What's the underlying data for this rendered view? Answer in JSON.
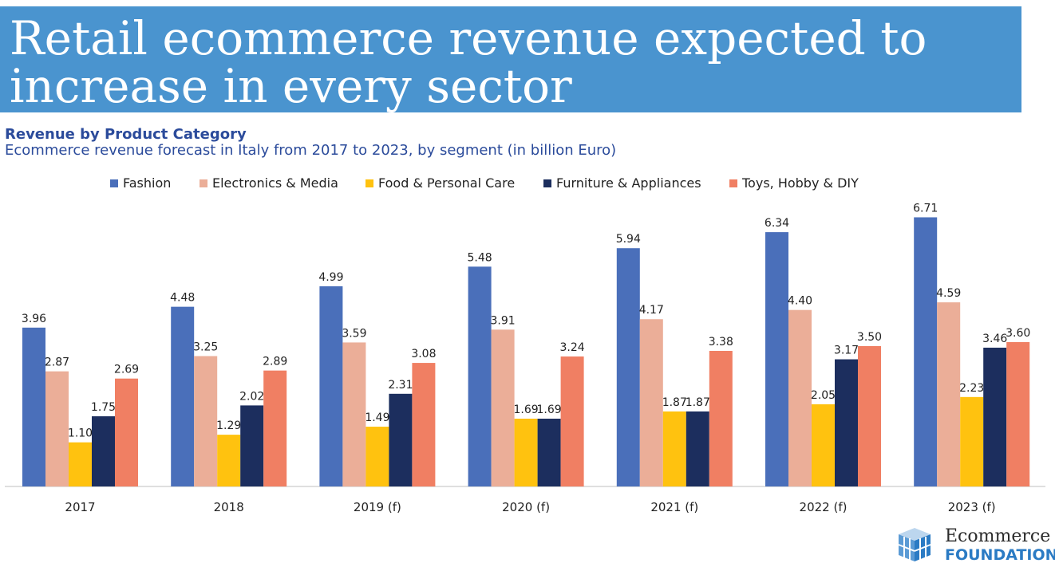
{
  "header": {
    "title": "Retail ecommerce revenue expected to increase in every sector"
  },
  "chart_header": {
    "heading": "Revenue by Product Category",
    "subheading": "Ecommerce revenue forecast in Italy from 2017 to 2023, by segment (in billion Euro)"
  },
  "logo": {
    "line1": "Ecommerce",
    "line2": "FOUNDATION"
  },
  "chart_data": {
    "type": "bar",
    "title": "",
    "xlabel": "",
    "ylabel": "",
    "ylim": [
      0,
      7
    ],
    "grid": false,
    "legend_position": "top",
    "categories": [
      "2017",
      "2018",
      "2019 (f)",
      "2020 (f)",
      "2021 (f)",
      "2022 (f)",
      "2023 (f)"
    ],
    "series": [
      {
        "name": "Fashion",
        "color": "#4a6fba",
        "values": [
          3.96,
          4.48,
          4.99,
          5.48,
          5.94,
          6.34,
          6.71
        ]
      },
      {
        "name": "Electronics & Media",
        "color": "#ebae98",
        "values": [
          2.87,
          3.25,
          3.59,
          3.91,
          4.17,
          4.4,
          4.59
        ]
      },
      {
        "name": "Food & Personal Care",
        "color": "#ffc20f",
        "values": [
          1.1,
          1.29,
          1.49,
          1.69,
          1.87,
          2.05,
          2.23
        ]
      },
      {
        "name": "Furniture & Appliances",
        "color": "#1c2e5e",
        "values": [
          1.75,
          2.02,
          2.31,
          1.69,
          1.87,
          3.17,
          3.46
        ]
      },
      {
        "name": "Toys, Hobby & DIY",
        "color": "#f07f63",
        "values": [
          2.69,
          2.89,
          3.08,
          3.24,
          3.38,
          3.5,
          3.6
        ]
      }
    ]
  }
}
